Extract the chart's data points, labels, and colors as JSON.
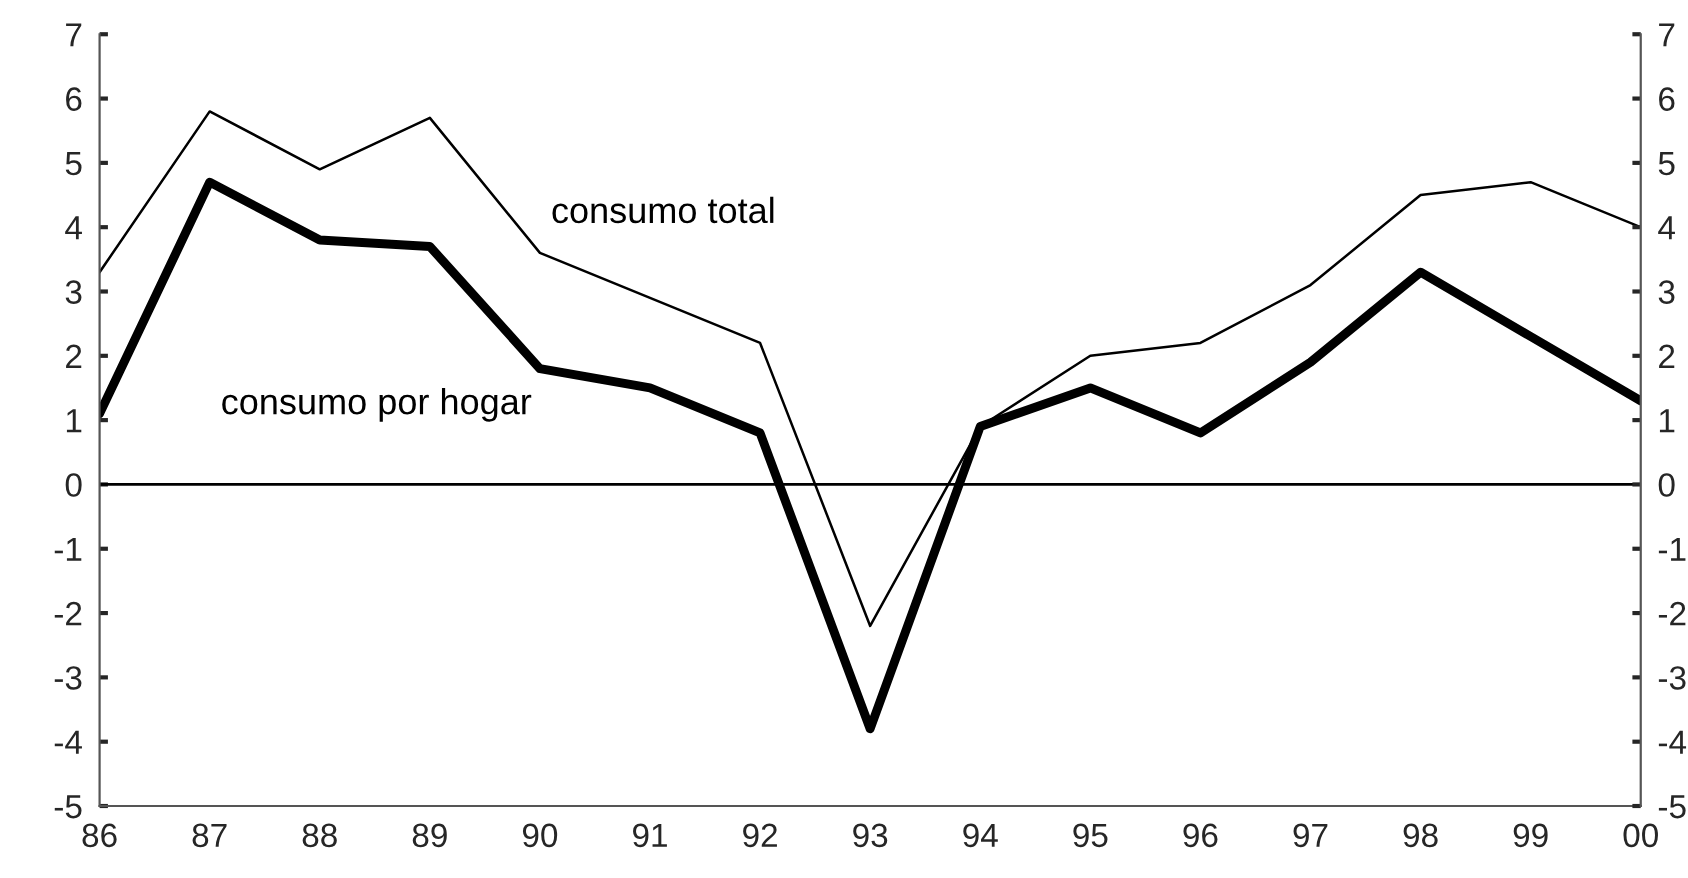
{
  "chart_data": {
    "type": "line",
    "categories": [
      "86",
      "87",
      "88",
      "89",
      "90",
      "91",
      "92",
      "93",
      "94",
      "95",
      "96",
      "97",
      "98",
      "99",
      "00"
    ],
    "series": [
      {
        "name": "consumo total",
        "color": "#000000",
        "values": [
          3.3,
          5.8,
          4.9,
          5.7,
          3.6,
          2.9,
          2.2,
          -2.2,
          0.9,
          2.0,
          2.2,
          3.1,
          4.5,
          4.7,
          4.0
        ]
      },
      {
        "name": "consumo por hogar",
        "color": "#000000",
        "values": [
          1.1,
          4.7,
          3.8,
          3.7,
          1.8,
          1.5,
          0.8,
          -3.8,
          0.9,
          1.5,
          0.8,
          1.9,
          3.3,
          2.3,
          1.3
        ]
      }
    ],
    "ylim": [
      -5,
      7
    ],
    "yticks": [
      -5,
      -4,
      -3,
      -2,
      -1,
      0,
      1,
      2,
      3,
      4,
      5,
      6,
      7
    ],
    "y2lim": [
      -5,
      7
    ],
    "y2ticks": [
      -5,
      -4,
      -3,
      -2,
      -1,
      0,
      1,
      2,
      3,
      4,
      5,
      6,
      7
    ],
    "ref_lines": [
      {
        "axis": "y",
        "value": 0,
        "color": "#000000"
      }
    ],
    "grid": false,
    "legend": false,
    "marker": "none",
    "line_style": "solid"
  }
}
